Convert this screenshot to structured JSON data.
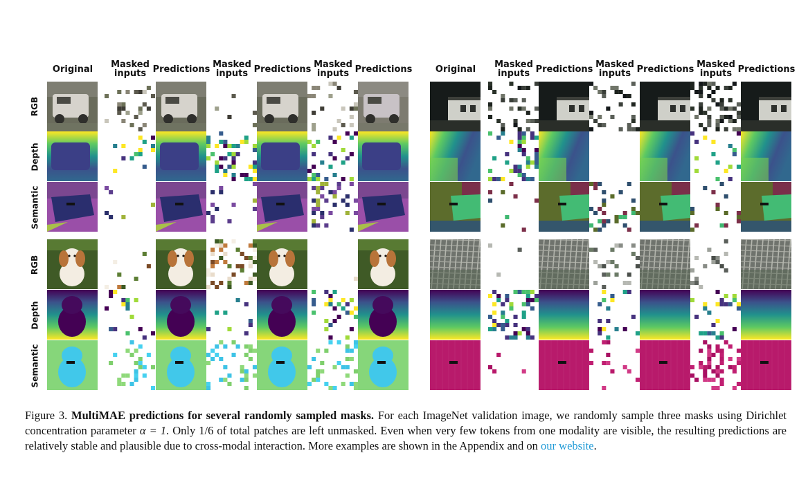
{
  "figure": {
    "column_headers": [
      "Original",
      "Masked\ninputs",
      "Predictions",
      "Masked\ninputs",
      "Predictions",
      "Masked\ninputs",
      "Predictions"
    ],
    "row_labels": [
      "RGB",
      "Depth",
      "Semantic"
    ],
    "panels": [
      {
        "name": "panel-jeep",
        "subject": "jeep"
      },
      {
        "name": "panel-house",
        "subject": "house"
      },
      {
        "name": "panel-dog",
        "subject": "dog"
      },
      {
        "name": "panel-grid",
        "subject": "grid"
      }
    ],
    "colors": {
      "link": "#1f9ad6",
      "viridis_dark": "#440154",
      "viridis_mid": "#21918c",
      "viridis_light": "#fde725"
    }
  },
  "caption": {
    "label": "Figure 3.",
    "title": "MultiMAE predictions for several randomly sampled masks.",
    "body_before_math": "For each ImageNet validation image, we randomly sample three masks using Dirichlet concentration parameter",
    "math": "α = 1",
    "body_after_math": ". Only 1/6 of total patches are left unmasked. Even when very few tokens from one modality are visible, the resulting predictions are relatively stable and plausible due to cross-modal interaction. More examples are shown in the Appendix and on",
    "link_text": "our website",
    "end": "."
  }
}
